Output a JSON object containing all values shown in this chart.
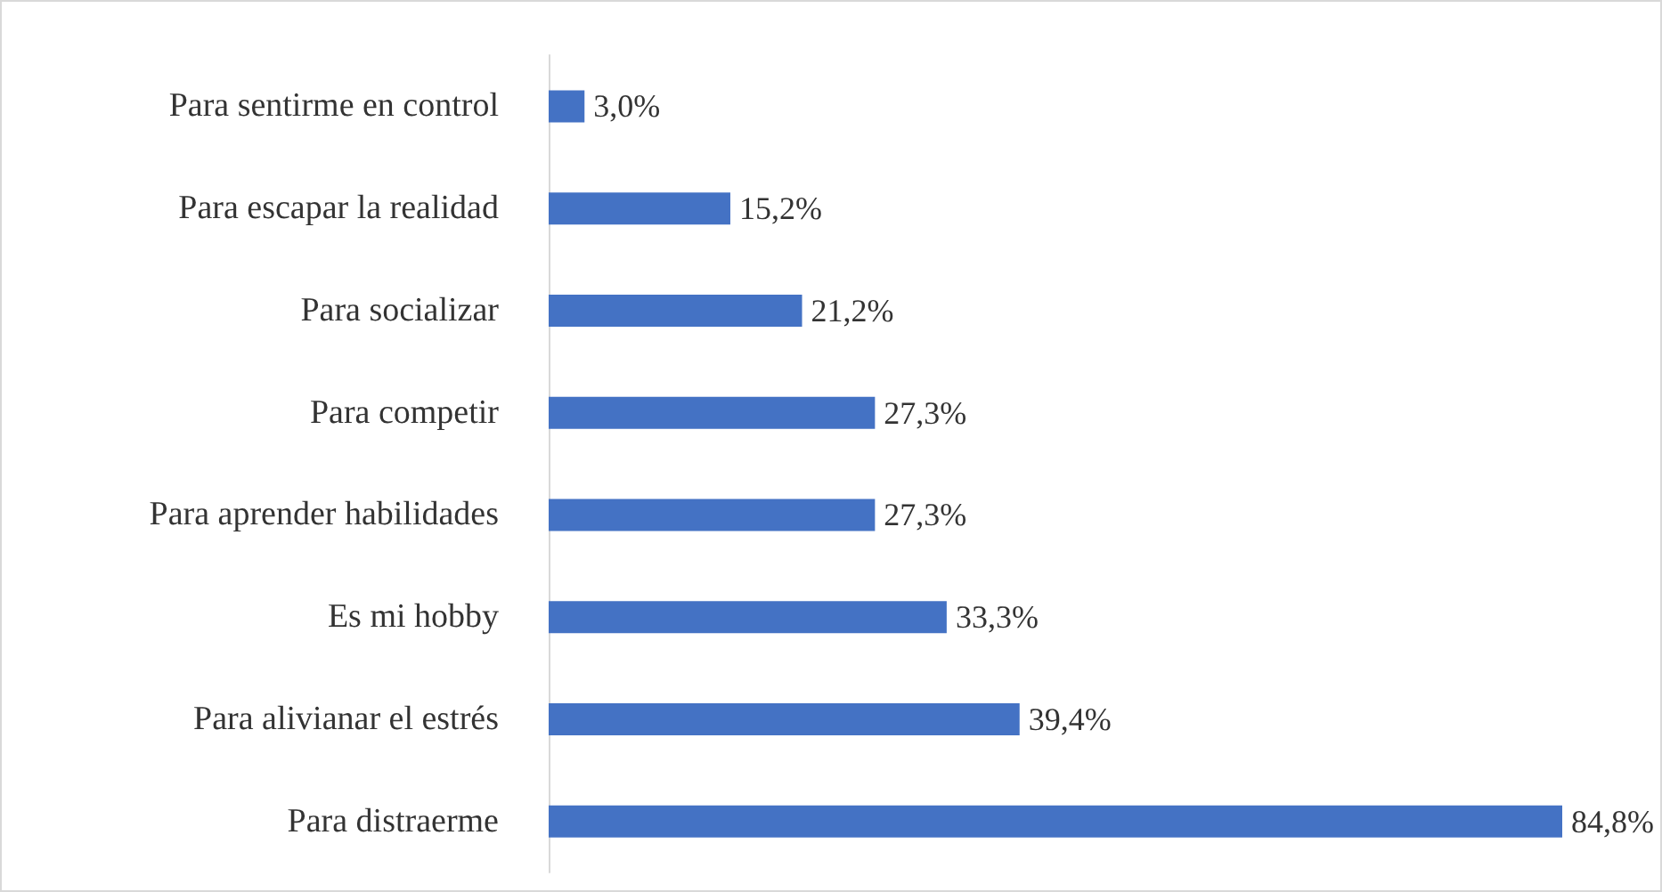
{
  "chart_data": {
    "type": "bar",
    "orientation": "horizontal",
    "categories": [
      "Para sentirme en control",
      "Para escapar la realidad",
      "Para socializar",
      "Para competir",
      "Para aprender habilidades",
      "Es mi hobby",
      "Para alivianar el estrés",
      "Para distraerme"
    ],
    "values": [
      3.0,
      15.2,
      21.2,
      27.3,
      27.3,
      33.3,
      39.4,
      84.8
    ],
    "value_labels": [
      "3,0%",
      "15,2%",
      "21,2%",
      "27,3%",
      "27,3%",
      "33,3%",
      "39,4%",
      "84,8%"
    ],
    "color": "#4472c4"
  }
}
